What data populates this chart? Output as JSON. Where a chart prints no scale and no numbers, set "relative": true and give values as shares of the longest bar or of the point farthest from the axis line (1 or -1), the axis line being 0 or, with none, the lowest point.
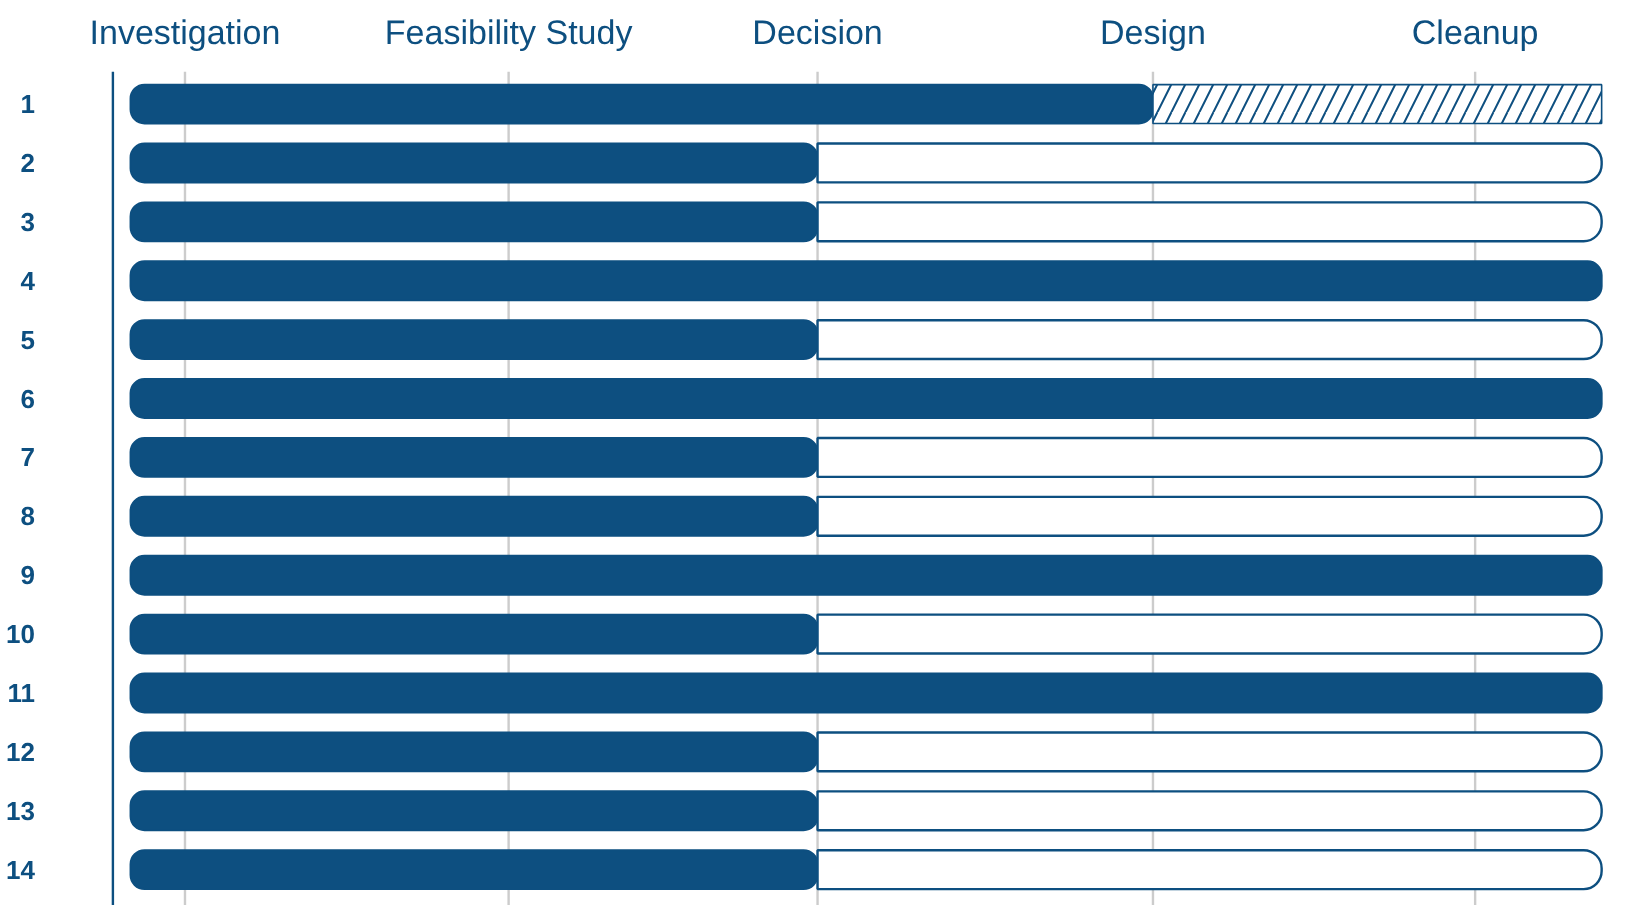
{
  "chart_data": {
    "type": "bar",
    "orientation": "horizontal",
    "stacked": true,
    "relative": true,
    "categories": [
      "1",
      "2",
      "3",
      "4",
      "5",
      "6",
      "7",
      "8",
      "9",
      "10",
      "11",
      "12",
      "13",
      "14"
    ],
    "series": [
      {
        "color": "#0d4f80",
        "values": [
          0.695,
          0.467,
          0.467,
          1,
          0.467,
          1,
          0.467,
          0.467,
          1,
          0.467,
          1,
          0.467,
          0.467,
          0.467
        ]
      },
      {
        "color": "#ffffff",
        "values": [
          0.305,
          null,
          null,
          null,
          null,
          null,
          null,
          null,
          null,
          null,
          null,
          null,
          null,
          null
        ]
      },
      {
        "color": "#ffffff",
        "values": [
          null,
          0.533,
          0.533,
          null,
          0.533,
          null,
          0.533,
          0.533,
          null,
          0.533,
          null,
          0.533,
          0.533,
          0.533
        ]
      }
    ],
    "ref_lines": [
      {
        "axis": "x",
        "value": 0.037,
        "label": "Investigation",
        "color": "#cccccc"
      },
      {
        "axis": "x",
        "value": 0.257,
        "label": "Feasibility Study",
        "color": "#cccccc"
      },
      {
        "axis": "x",
        "value": 0.467,
        "label": "Decision",
        "color": "#cccccc"
      },
      {
        "axis": "x",
        "value": 0.695,
        "label": "Design",
        "color": "#cccccc"
      },
      {
        "axis": "x",
        "value": 0.914,
        "label": "Cleanup",
        "color": "#cccccc"
      }
    ]
  }
}
